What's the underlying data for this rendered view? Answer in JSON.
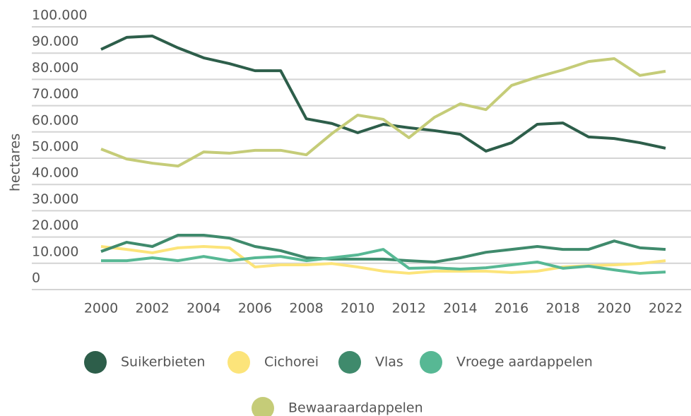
{
  "chart_data": {
    "type": "line",
    "ylabel": "hectares",
    "x": [
      2000,
      2001,
      2002,
      2003,
      2004,
      2005,
      2006,
      2007,
      2008,
      2009,
      2010,
      2011,
      2012,
      2013,
      2014,
      2015,
      2016,
      2017,
      2018,
      2019,
      2020,
      2021,
      2022
    ],
    "xlim": [
      2000,
      2022
    ],
    "xticks": [
      2000,
      2002,
      2004,
      2006,
      2008,
      2010,
      2012,
      2014,
      2016,
      2018,
      2020,
      2022
    ],
    "ylim": [
      0,
      100000
    ],
    "yticks": [
      0,
      {
        "value": 10000,
        "label": "10.000"
      },
      {
        "value": 20000,
        "label": "20.000"
      },
      {
        "value": 30000,
        "label": "30.000"
      },
      {
        "value": 40000,
        "label": "40.000"
      },
      {
        "value": 50000,
        "label": "50.000"
      },
      {
        "value": 60000,
        "label": "60.000"
      },
      {
        "value": 70000,
        "label": "70.000"
      },
      {
        "value": 80000,
        "label": "80.000"
      },
      {
        "value": 90000,
        "label": "90.000"
      },
      {
        "value": 100000,
        "label": "100.000"
      }
    ],
    "grid": true,
    "legend": "bottom",
    "series": [
      {
        "name": "Suikerbieten",
        "color": "#2d5e4a",
        "values": [
          91400,
          96000,
          96500,
          92000,
          88200,
          86000,
          83300,
          83300,
          65000,
          63200,
          59700,
          62900,
          61600,
          60500,
          59100,
          52700,
          55900,
          62900,
          63400,
          58100,
          57500,
          55900,
          53800
        ]
      },
      {
        "name": "Cichorei",
        "color": "#fce47a",
        "values": [
          16400,
          15300,
          14000,
          15900,
          16400,
          15900,
          8600,
          9400,
          9400,
          9900,
          8600,
          7000,
          6200,
          7000,
          7000,
          7000,
          6500,
          7000,
          8600,
          9100,
          9400,
          9900,
          11000
        ]
      },
      {
        "name": "Vlas",
        "color": "#3f8a6c",
        "values": [
          14500,
          18000,
          16400,
          20700,
          20700,
          19600,
          16400,
          14800,
          12100,
          11600,
          11600,
          11600,
          11000,
          10500,
          12100,
          14200,
          15300,
          16400,
          15300,
          15300,
          18500,
          15900,
          15300
        ]
      },
      {
        "name": "Vroege aardappelen",
        "color": "#57b894",
        "values": [
          11000,
          11000,
          12100,
          11000,
          12600,
          11000,
          12100,
          12600,
          11000,
          12100,
          13200,
          15300,
          8100,
          8300,
          7800,
          8300,
          9400,
          10500,
          8100,
          8900,
          7500,
          6200,
          6700
        ]
      },
      {
        "name": "Bewaaraardappelen",
        "color": "#c5cc78",
        "values": [
          53500,
          49700,
          48100,
          47000,
          52400,
          51900,
          53000,
          53000,
          51300,
          59400,
          66400,
          64800,
          57800,
          65600,
          70700,
          68500,
          77700,
          80900,
          83600,
          86800,
          87900,
          81500,
          83100
        ]
      }
    ]
  }
}
